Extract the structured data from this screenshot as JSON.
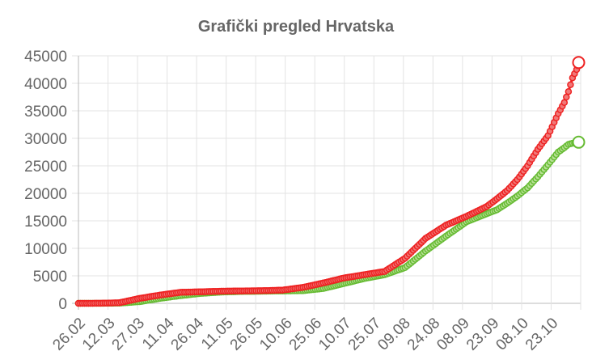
{
  "chart_data": {
    "type": "line",
    "title": "Grafički pregled Hrvatska",
    "xlabel": "",
    "ylabel": "",
    "x_tick_labels": [
      "26.02",
      "12.03",
      "27.03",
      "11.04",
      "26.04",
      "11.05",
      "26.05",
      "10.06",
      "25.06",
      "10.07",
      "25.07",
      "09.08",
      "24.08",
      "08.09",
      "23.09",
      "08.10",
      "23.10"
    ],
    "y_tick_labels": [
      "0",
      "5000",
      "10000",
      "15000",
      "20000",
      "25000",
      "30000",
      "35000",
      "40000",
      "45000"
    ],
    "ylim": [
      0,
      45000
    ],
    "day_count": 246,
    "grid": true,
    "legend": "none",
    "series": [
      {
        "color": "#ee2222",
        "point_fill": "#f07878",
        "anchors_day": [
          0,
          10,
          20,
          30,
          40,
          50,
          60,
          70,
          80,
          90,
          100,
          110,
          120,
          130,
          140,
          150,
          160,
          170,
          180,
          190,
          200,
          205,
          210,
          215,
          220,
          225,
          230,
          235,
          238,
          240,
          242,
          244,
          245
        ],
        "anchors_value": [
          0,
          10,
          100,
          900,
          1500,
          2000,
          2100,
          2200,
          2250,
          2300,
          2400,
          2900,
          3700,
          4600,
          5200,
          5800,
          8200,
          11800,
          14200,
          15800,
          17600,
          19000,
          20500,
          22500,
          25000,
          28000,
          30500,
          34500,
          36500,
          38500,
          41000,
          42500,
          43775
        ]
      },
      {
        "color": "#66bb33",
        "point_fill": "#b8e096",
        "anchors_day": [
          0,
          10,
          20,
          30,
          40,
          50,
          60,
          70,
          80,
          90,
          100,
          110,
          120,
          130,
          140,
          150,
          160,
          170,
          180,
          190,
          200,
          205,
          210,
          215,
          220,
          225,
          230,
          235,
          238,
          240,
          242,
          244,
          245
        ],
        "anchors_value": [
          0,
          0,
          30,
          300,
          900,
          1400,
          1800,
          2050,
          2150,
          2200,
          2250,
          2300,
          2700,
          3600,
          4500,
          5200,
          6500,
          9500,
          12200,
          14800,
          16300,
          17000,
          18200,
          19500,
          21000,
          23000,
          25200,
          27500,
          28300,
          28900,
          29100,
          29200,
          29300
        ]
      }
    ]
  }
}
